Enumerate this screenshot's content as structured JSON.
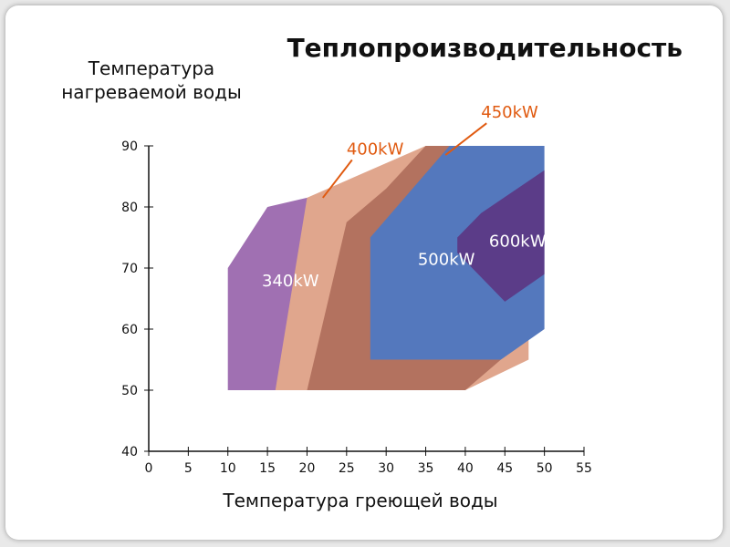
{
  "chart_data": {
    "type": "area",
    "title": "Теплопроизводительность",
    "xlabel": "Температура греющей воды",
    "ylabel_lines": [
      "Температура",
      "нагреваемой воды"
    ],
    "xlim": [
      0,
      55
    ],
    "ylim": [
      40,
      90
    ],
    "xticks": [
      0,
      5,
      10,
      15,
      20,
      25,
      30,
      35,
      40,
      45,
      50,
      55
    ],
    "yticks": [
      40,
      50,
      60,
      70,
      80,
      90
    ],
    "grid": false,
    "regions": [
      {
        "name": "340kW",
        "color": "#a070b2",
        "polygon": [
          [
            10,
            70
          ],
          [
            15,
            80
          ],
          [
            20,
            81.5
          ],
          [
            20,
            50
          ],
          [
            10,
            50
          ]
        ],
        "label_color": "#ffffff",
        "label_at": [
          14.3,
          67
        ]
      },
      {
        "name": "400kW",
        "color": "#e0a68d",
        "polygon": [
          [
            20,
            81.5
          ],
          [
            35,
            90
          ],
          [
            42,
            90
          ],
          [
            48,
            88
          ],
          [
            48,
            55
          ],
          [
            40,
            50
          ],
          [
            16,
            50
          ],
          [
            20,
            81.5
          ]
        ],
        "label_color": "#e05a10",
        "label_at": [
          25,
          88.6
        ],
        "pointer_to": [
          22,
          81.5
        ]
      },
      {
        "name": "450kW",
        "color": "#b3725f",
        "polygon": [
          [
            25,
            77.5
          ],
          [
            30,
            83
          ],
          [
            35,
            90
          ],
          [
            44.5,
            90
          ],
          [
            48,
            88
          ],
          [
            44.5,
            55
          ],
          [
            40,
            50
          ],
          [
            20,
            50
          ]
        ],
        "label_color": "#e05a10",
        "label_at": [
          42,
          94.6
        ],
        "pointer_to": [
          37.5,
          88.5
        ]
      },
      {
        "name": "500kW",
        "color": "#5478bd",
        "polygon": [
          [
            28,
            75
          ],
          [
            38,
            90
          ],
          [
            50,
            90
          ],
          [
            50,
            60
          ],
          [
            44.5,
            55
          ],
          [
            28,
            55
          ]
        ],
        "label_color": "#ffffff",
        "label_at": [
          34,
          70.5
        ]
      },
      {
        "name": "600kW",
        "color": "#5b3c88",
        "polygon": [
          [
            39,
            75
          ],
          [
            42,
            79
          ],
          [
            50,
            86
          ],
          [
            50,
            69
          ],
          [
            45,
            64.5
          ],
          [
            39,
            72.5
          ]
        ],
        "label_color": "#ffffff",
        "label_at": [
          43,
          73.5
        ]
      }
    ]
  }
}
